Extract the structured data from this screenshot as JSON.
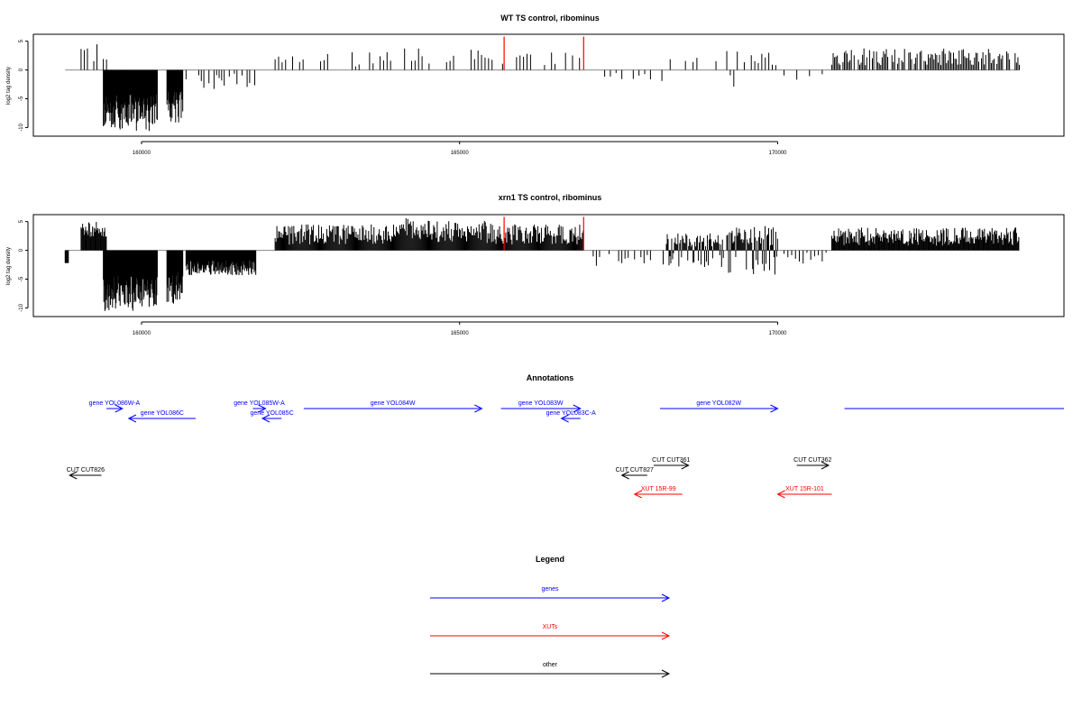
{
  "panels": [
    {
      "title": "WT TS control, ribominus",
      "ylabel": "log2 tag density",
      "xticks": [
        160000,
        165000,
        170000
      ],
      "yticks": [
        5,
        0,
        -5,
        -10
      ],
      "xlim": [
        158300,
        174500
      ],
      "ylim": [
        -11.5,
        6.2
      ],
      "mode": "wt"
    },
    {
      "title": "xrn1 TS control, ribominus",
      "ylabel": "log2 tag density",
      "xticks": [
        160000,
        165000,
        170000
      ],
      "yticks": [
        5,
        0,
        -5,
        -10
      ],
      "xlim": [
        158300,
        174500
      ],
      "ylim": [
        -11.5,
        6.2
      ],
      "mode": "xrn1"
    }
  ],
  "chart_data": {
    "type": "bar",
    "x_range": [
      158800,
      173800
    ],
    "red_markers": [
      165700,
      166950
    ],
    "description_segments": {
      "wt_negative_blocks": [
        [
          159400,
          160250,
          -8.5
        ],
        [
          160400,
          160650,
          -7.5
        ]
      ],
      "xrn1_negative_blocks": [
        [
          159400,
          160250,
          -8.5
        ],
        [
          160400,
          160650,
          -7.5
        ],
        [
          160700,
          161800,
          -3.5
        ]
      ]
    }
  },
  "annotations": {
    "title": "Annotations",
    "features": [
      {
        "label": "gene YOL086W-A",
        "start": 159450,
        "end": 159700,
        "dir": "+",
        "row": 0,
        "color": "#0000ff"
      },
      {
        "label": "gene YOL086C",
        "start": 159800,
        "end": 160850,
        "dir": "-",
        "row": 1,
        "color": "#0000ff"
      },
      {
        "label": "gene YOL085W-A",
        "start": 161750,
        "end": 161950,
        "dir": "+",
        "row": 0,
        "color": "#0000ff"
      },
      {
        "label": "gene YOL085C",
        "start": 161900,
        "end": 162200,
        "dir": "-",
        "row": 1,
        "color": "#0000ff"
      },
      {
        "label": "gene YOL084W",
        "start": 162550,
        "end": 165350,
        "dir": "+",
        "row": 0,
        "color": "#0000ff"
      },
      {
        "label": "gene YOL083W",
        "start": 165650,
        "end": 166900,
        "dir": "+",
        "row": 0,
        "color": "#0000ff"
      },
      {
        "label": "gene YOL083C-A",
        "start": 166600,
        "end": 166900,
        "dir": "-",
        "row": 1,
        "color": "#0000ff"
      },
      {
        "label": "gene YOL082W",
        "start": 168150,
        "end": 170000,
        "dir": "+",
        "row": 0,
        "color": "#0000ff"
      },
      {
        "label": "",
        "start": 171050,
        "end": 174500,
        "dir": "+",
        "row": 0,
        "color": "#0000ff",
        "noarrow": true
      },
      {
        "label": "CUT CUT826",
        "start": 158870,
        "end": 159370,
        "dir": "-",
        "row": 3,
        "color": "#000000"
      },
      {
        "label": "CUT CUT827",
        "start": 167550,
        "end": 167950,
        "dir": "-",
        "row": 3,
        "color": "#000000"
      },
      {
        "label": "CUT CUT361",
        "start": 168050,
        "end": 168600,
        "dir": "+",
        "row": 2,
        "color": "#000000"
      },
      {
        "label": "CUT CUT362",
        "start": 170300,
        "end": 170800,
        "dir": "+",
        "row": 2,
        "color": "#000000"
      },
      {
        "label": "XUT 15R-99",
        "start": 167750,
        "end": 168500,
        "dir": "-",
        "row": 4,
        "color": "#ff0000"
      },
      {
        "label": "XUT 15R-101",
        "start": 170000,
        "end": 170850,
        "dir": "-",
        "row": 4,
        "color": "#ff0000"
      }
    ]
  },
  "legend": {
    "title": "Legend",
    "items": [
      {
        "label": "genes",
        "color": "#0000ff"
      },
      {
        "label": "XUTs",
        "color": "#ff0000"
      },
      {
        "label": "other",
        "color": "#000000"
      }
    ]
  }
}
